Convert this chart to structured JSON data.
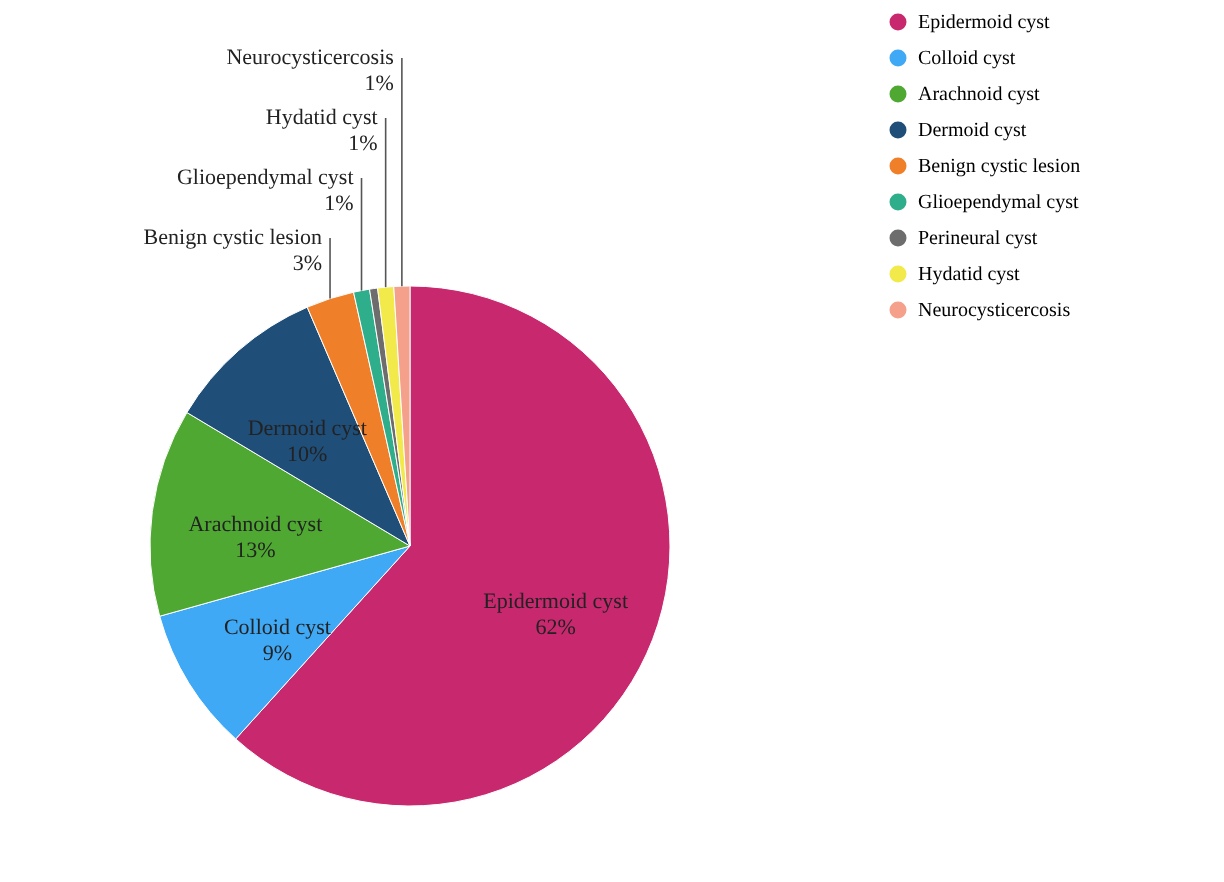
{
  "chart_data": {
    "type": "pie",
    "categories": [
      "Epidermoid cyst",
      "Colloid cyst",
      "Arachnoid cyst",
      "Dermoid cyst",
      "Benign cystic lesion",
      "Glioependymal cyst",
      "Perineural cyst",
      "Hydatid cyst",
      "Neurocysticercosis"
    ],
    "values": [
      62,
      9,
      13,
      10,
      3,
      1,
      0.5,
      1,
      1
    ],
    "value_labels": [
      "62%",
      "9%",
      "13%",
      "10%",
      "3%",
      "1%",
      null,
      "1%",
      "1%"
    ],
    "colors": [
      "#c8286e",
      "#3fa9f5",
      "#4fa832",
      "#1f4e79",
      "#f07f2a",
      "#2fae8c",
      "#6d6d6d",
      "#f2ea4a",
      "#f4a08a"
    ],
    "legend": "right"
  }
}
